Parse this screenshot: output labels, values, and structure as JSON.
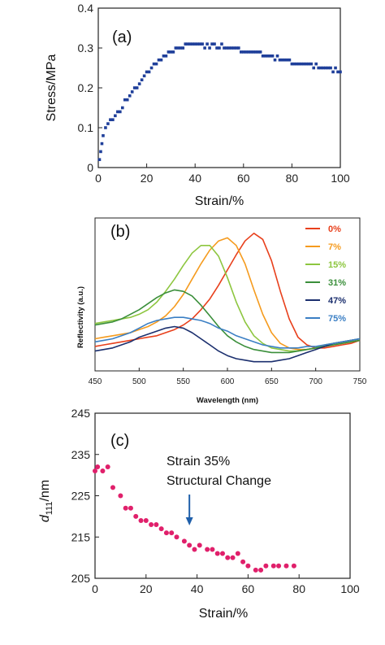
{
  "chart_data": [
    {
      "type": "scatter",
      "panel_label": "(a)",
      "xlabel": "Strain/%",
      "ylabel": "Stress/MPa",
      "xlim": [
        0,
        100
      ],
      "ylim": [
        0,
        0.4
      ],
      "xticks": [
        "0",
        "20",
        "40",
        "60",
        "80",
        "100"
      ],
      "yticks": [
        "0",
        "0.1",
        "0.2",
        "0.3",
        "0.4"
      ],
      "marker_color": "#1f3f9a",
      "x": [
        0.5,
        1,
        1.5,
        2,
        3,
        4,
        5,
        6,
        7,
        8,
        9,
        10,
        11,
        12,
        13,
        14,
        15,
        16,
        17,
        18,
        19,
        20,
        21,
        22,
        23,
        24,
        25,
        26,
        27,
        28,
        29,
        30,
        31,
        32,
        33,
        34,
        35,
        36,
        37,
        38,
        39,
        40,
        41,
        42,
        43,
        44,
        45,
        46,
        47,
        48,
        49,
        50,
        51,
        52,
        53,
        54,
        55,
        56,
        57,
        58,
        59,
        60,
        61,
        62,
        63,
        64,
        65,
        66,
        67,
        68,
        69,
        70,
        71,
        72,
        73,
        74,
        75,
        76,
        77,
        78,
        79,
        80,
        81,
        82,
        83,
        84,
        85,
        86,
        87,
        88,
        89,
        90,
        91,
        92,
        93,
        94,
        95,
        96,
        97,
        98,
        99,
        100
      ],
      "y": [
        0.02,
        0.04,
        0.06,
        0.08,
        0.1,
        0.11,
        0.12,
        0.12,
        0.13,
        0.14,
        0.14,
        0.15,
        0.17,
        0.17,
        0.18,
        0.19,
        0.2,
        0.2,
        0.21,
        0.22,
        0.23,
        0.24,
        0.24,
        0.25,
        0.26,
        0.26,
        0.27,
        0.27,
        0.28,
        0.28,
        0.29,
        0.29,
        0.29,
        0.3,
        0.3,
        0.3,
        0.3,
        0.31,
        0.31,
        0.31,
        0.31,
        0.31,
        0.31,
        0.31,
        0.31,
        0.3,
        0.31,
        0.3,
        0.31,
        0.31,
        0.3,
        0.3,
        0.31,
        0.3,
        0.3,
        0.3,
        0.3,
        0.3,
        0.3,
        0.3,
        0.29,
        0.29,
        0.29,
        0.29,
        0.29,
        0.29,
        0.29,
        0.29,
        0.29,
        0.28,
        0.28,
        0.28,
        0.28,
        0.28,
        0.27,
        0.28,
        0.27,
        0.27,
        0.27,
        0.27,
        0.27,
        0.26,
        0.26,
        0.26,
        0.26,
        0.26,
        0.26,
        0.26,
        0.26,
        0.26,
        0.25,
        0.26,
        0.25,
        0.25,
        0.25,
        0.25,
        0.25,
        0.25,
        0.24,
        0.25,
        0.24,
        0.24
      ]
    },
    {
      "type": "line",
      "panel_label": "(b)",
      "xlabel": "Wavelength (nm)",
      "ylabel": "Reflectivity (a.u.)",
      "xlim": [
        450,
        750
      ],
      "ylim": [
        0,
        1
      ],
      "xticks": [
        "450",
        "500",
        "550",
        "600",
        "650",
        "700",
        "750"
      ],
      "legend_position": "top-right",
      "x": [
        450,
        460,
        470,
        480,
        490,
        500,
        510,
        520,
        530,
        540,
        550,
        560,
        570,
        580,
        590,
        600,
        610,
        620,
        630,
        640,
        650,
        660,
        670,
        680,
        690,
        700,
        710,
        720,
        730,
        740,
        750
      ],
      "series": [
        {
          "name": "0%",
          "color": "#e8401c",
          "values": [
            0.16,
            0.17,
            0.18,
            0.19,
            0.2,
            0.21,
            0.22,
            0.23,
            0.25,
            0.27,
            0.3,
            0.34,
            0.4,
            0.47,
            0.56,
            0.66,
            0.76,
            0.85,
            0.9,
            0.86,
            0.72,
            0.52,
            0.34,
            0.22,
            0.17,
            0.15,
            0.15,
            0.16,
            0.17,
            0.18,
            0.2
          ]
        },
        {
          "name": "7%",
          "color": "#f59b1e",
          "values": [
            0.21,
            0.22,
            0.23,
            0.24,
            0.25,
            0.27,
            0.29,
            0.32,
            0.36,
            0.42,
            0.5,
            0.6,
            0.7,
            0.79,
            0.85,
            0.87,
            0.82,
            0.7,
            0.53,
            0.37,
            0.25,
            0.18,
            0.15,
            0.14,
            0.14,
            0.15,
            0.16,
            0.17,
            0.18,
            0.19,
            0.2
          ]
        },
        {
          "name": "15%",
          "color": "#8dc63f",
          "values": [
            0.31,
            0.32,
            0.33,
            0.34,
            0.35,
            0.37,
            0.4,
            0.45,
            0.52,
            0.6,
            0.69,
            0.77,
            0.82,
            0.82,
            0.75,
            0.61,
            0.45,
            0.32,
            0.23,
            0.18,
            0.15,
            0.14,
            0.13,
            0.13,
            0.14,
            0.15,
            0.17,
            0.18,
            0.19,
            0.2,
            0.21
          ]
        },
        {
          "name": "31%",
          "color": "#3b8f3b",
          "values": [
            0.3,
            0.31,
            0.32,
            0.34,
            0.37,
            0.4,
            0.44,
            0.48,
            0.51,
            0.53,
            0.52,
            0.49,
            0.43,
            0.36,
            0.29,
            0.23,
            0.19,
            0.16,
            0.14,
            0.13,
            0.12,
            0.12,
            0.12,
            0.13,
            0.14,
            0.15,
            0.16,
            0.17,
            0.18,
            0.19,
            0.2
          ]
        },
        {
          "name": "47%",
          "color": "#1b2f6e",
          "values": [
            0.13,
            0.14,
            0.15,
            0.17,
            0.19,
            0.22,
            0.24,
            0.26,
            0.28,
            0.29,
            0.28,
            0.25,
            0.21,
            0.17,
            0.13,
            0.1,
            0.08,
            0.07,
            0.06,
            0.06,
            0.06,
            0.07,
            0.08,
            0.1,
            0.12,
            0.14,
            0.16,
            0.18,
            0.19,
            0.2,
            0.21
          ]
        },
        {
          "name": "75%",
          "color": "#3b7fc4",
          "values": [
            0.19,
            0.2,
            0.21,
            0.23,
            0.25,
            0.28,
            0.31,
            0.33,
            0.34,
            0.35,
            0.35,
            0.34,
            0.33,
            0.31,
            0.28,
            0.26,
            0.23,
            0.21,
            0.19,
            0.17,
            0.16,
            0.15,
            0.15,
            0.15,
            0.16,
            0.16,
            0.17,
            0.18,
            0.19,
            0.2,
            0.21
          ]
        }
      ]
    },
    {
      "type": "scatter",
      "panel_label": "(c)",
      "xlabel": "Strain/%",
      "ylabel_main": "d",
      "ylabel_sub": "111",
      "ylabel_unit": "/nm",
      "xlim": [
        0,
        100
      ],
      "ylim": [
        205,
        245
      ],
      "xticks": [
        "0",
        "20",
        "40",
        "60",
        "80",
        "100"
      ],
      "yticks": [
        "205",
        "215",
        "225",
        "235",
        "245"
      ],
      "marker_color": "#e0206b",
      "annotation_line1": "Strain 35%",
      "annotation_line2": "Structural Change",
      "annotation_arrow_x": 37,
      "arrow_color": "#1f5faa",
      "x": [
        0,
        1,
        3,
        5,
        7,
        10,
        12,
        14,
        16,
        18,
        20,
        22,
        24,
        26,
        28,
        30,
        32,
        35,
        37,
        39,
        41,
        44,
        46,
        48,
        50,
        52,
        54,
        56,
        58,
        60,
        63,
        65,
        67,
        70,
        72,
        75,
        78
      ],
      "y": [
        231,
        232,
        231,
        232,
        227,
        225,
        222,
        222,
        220,
        219,
        219,
        218,
        218,
        217,
        216,
        216,
        215,
        214,
        213,
        212,
        213,
        212,
        212,
        211,
        211,
        210,
        210,
        211,
        209,
        208,
        207,
        207,
        208,
        208,
        208,
        208,
        208
      ]
    }
  ]
}
